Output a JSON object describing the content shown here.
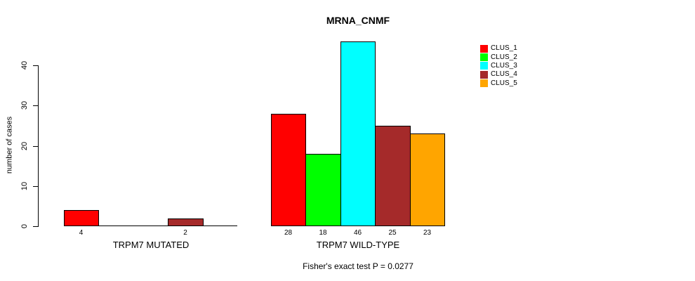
{
  "chart_data": {
    "type": "bar",
    "title": "MRNA_CNMF",
    "ylabel": "number of cases",
    "xlabel": "",
    "ylim": [
      0,
      46
    ],
    "yticks": [
      0,
      10,
      20,
      30,
      40
    ],
    "grid": false,
    "legend_position": "top-right",
    "categories": [
      "TRPM7 MUTATED",
      "TRPM7 WILD-TYPE"
    ],
    "series": [
      {
        "name": "CLUS_1",
        "color": "#ff0000",
        "values": [
          4,
          28
        ]
      },
      {
        "name": "CLUS_2",
        "color": "#00ff00",
        "values": [
          0,
          18
        ]
      },
      {
        "name": "CLUS_3",
        "color": "#00ffff",
        "values": [
          0,
          46
        ]
      },
      {
        "name": "CLUS_4",
        "color": "#a52a2a",
        "values": [
          2,
          25
        ]
      },
      {
        "name": "CLUS_5",
        "color": "#ffa500",
        "values": [
          0,
          23
        ]
      }
    ],
    "bar_labels": [
      [
        "4",
        "",
        "",
        "2",
        ""
      ],
      [
        "28",
        "18",
        "46",
        "25",
        "23"
      ]
    ],
    "annotation": "Fisher's exact test P = 0.0277"
  }
}
